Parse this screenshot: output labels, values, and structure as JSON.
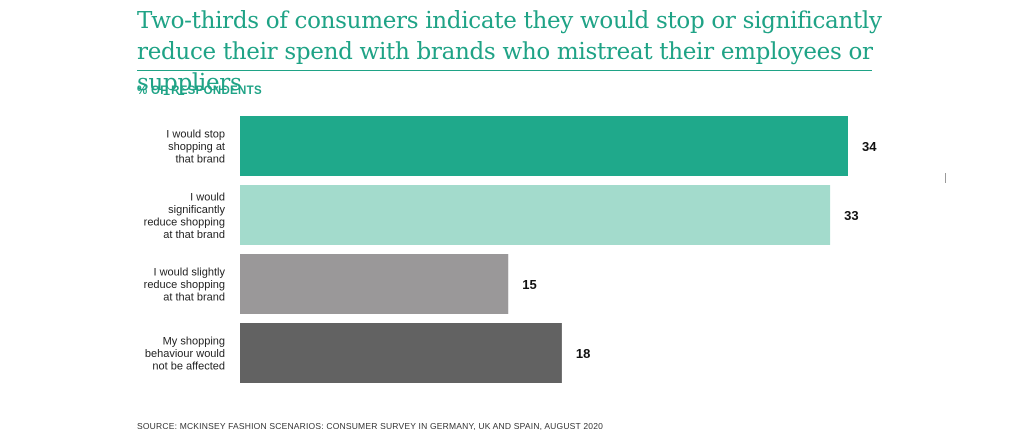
{
  "header": {
    "title": "Two-thirds of consumers indicate they would stop or significantly reduce their spend with brands who mistreat their employees or suppliers",
    "unit_label": "% OF RESPONDENTS"
  },
  "footer": {
    "source": "SOURCE: MCKINSEY FASHION SCENARIOS: CONSUMER SURVEY IN GERMANY, UK AND SPAIN, AUGUST 2020"
  },
  "chart_data": {
    "type": "bar",
    "orientation": "horizontal",
    "title": "Two-thirds of consumers indicate they would stop or significantly reduce their spend with brands who mistreat their employees or suppliers",
    "ylabel": "% OF RESPONDENTS",
    "xlabel": "",
    "categories": [
      [
        "I would stop",
        "shopping at",
        "that brand"
      ],
      [
        "I would",
        "significantly",
        "reduce shopping",
        "at that brand"
      ],
      [
        "I would slightly",
        "reduce shopping",
        "at that brand"
      ],
      [
        "My shopping",
        "behaviour would",
        "not be affected"
      ]
    ],
    "values": [
      34,
      33,
      15,
      18
    ],
    "colors": [
      "#1fa98b",
      "#a3dbcc",
      "#9a9899",
      "#626262"
    ],
    "xlim": [
      0,
      34
    ],
    "grid": false,
    "legend": "none",
    "data_labels": true
  }
}
